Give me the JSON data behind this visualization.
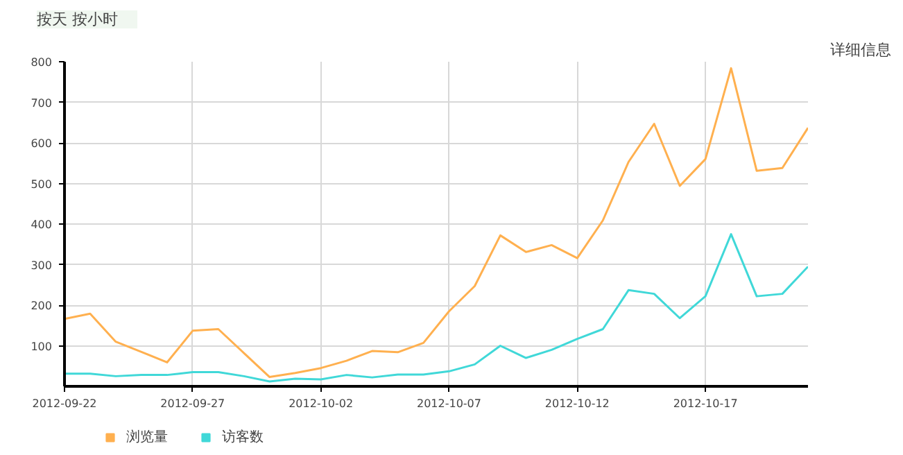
{
  "chart_data": {
    "type": "line",
    "annotations": [
      "按天",
      "按小时",
      "详细信息"
    ],
    "x": [
      "2012-09-22",
      "2012-09-23",
      "2012-09-24",
      "2012-09-25",
      "2012-09-26",
      "2012-09-27",
      "2012-09-28",
      "2012-09-29",
      "2012-09-30",
      "2012-10-01",
      "2012-10-02",
      "2012-10-03",
      "2012-10-04",
      "2012-10-05",
      "2012-10-06",
      "2012-10-07",
      "2012-10-08",
      "2012-10-09",
      "2012-10-10",
      "2012-10-11",
      "2012-10-12",
      "2012-10-13",
      "2012-10-14",
      "2012-10-15",
      "2012-10-16",
      "2012-10-17",
      "2012-10-18",
      "2012-10-19",
      "2012-10-20",
      "2012-10-21"
    ],
    "series": [
      {
        "name": "浏览量",
        "color": "#ffb04f",
        "values": [
          166,
          179,
          110,
          85,
          59,
          137,
          141,
          82,
          23,
          33,
          45,
          63,
          87,
          84,
          107,
          185,
          247,
          372,
          331,
          348,
          316,
          409,
          553,
          647,
          494,
          560,
          784,
          531,
          538,
          637
        ]
      },
      {
        "name": "访客数",
        "color": "#40d8d8",
        "values": [
          31,
          31,
          25,
          28,
          28,
          35,
          35,
          25,
          12,
          19,
          17,
          28,
          22,
          29,
          29,
          37,
          54,
          100,
          70,
          90,
          117,
          141,
          237,
          228,
          168,
          222,
          375,
          222,
          228,
          295
        ]
      }
    ],
    "xlim": [
      "2012-09-22",
      "2012-10-21"
    ],
    "xticks": [
      {
        "value": "2012-09-22",
        "label": "2012-09-22"
      },
      {
        "value": "2012-09-27",
        "label": "2012-09-27"
      },
      {
        "value": "2012-10-02",
        "label": "2012-10-02"
      },
      {
        "value": "2012-10-07",
        "label": "2012-10-07"
      },
      {
        "value": "2012-10-12",
        "label": "2012-10-12"
      },
      {
        "value": "2012-10-17",
        "label": "2012-10-17"
      }
    ],
    "ylim": [
      0,
      800
    ],
    "yticks": [
      100,
      200,
      300,
      400,
      500,
      600,
      700,
      800
    ],
    "grid": true,
    "legend": "bottom left",
    "marker": "none",
    "line_style": "solid"
  }
}
